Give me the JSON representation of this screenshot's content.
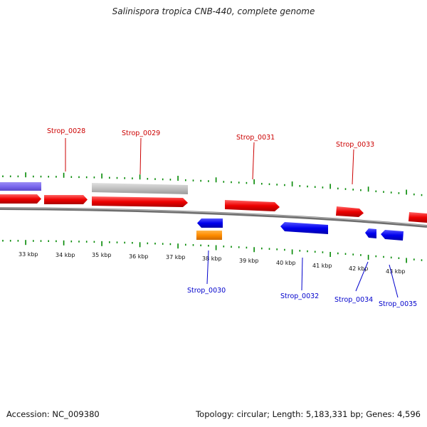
{
  "title": "Salinispora tropica CNB-440, complete genome",
  "footer": {
    "accession": "Accession: NC_009380",
    "summary": "Topology: circular; Length: 5,183,331 bp; Genes: 4,596"
  },
  "colors": {
    "forward_gene": "#ff0000",
    "reverse_gene": "#0000ee",
    "forward_label": "#cc0000",
    "reverse_label": "#0000cc",
    "tick": "#008800",
    "rna": "#ff8c00",
    "other_feature": "#c0c0c0",
    "repeat_region": "#7b68ee",
    "backbone": "#808080"
  },
  "scale_labels": [
    "33 kbp",
    "34 kbp",
    "35 kbp",
    "36 kbp",
    "37 kbp",
    "38 kbp",
    "39 kbp",
    "40 kbp",
    "41 kbp",
    "42 kbp",
    "43 kbp"
  ],
  "forward_gene_labels": [
    "Strop_0028",
    "Strop_0029",
    "Strop_0031",
    "Strop_0033"
  ],
  "reverse_gene_labels": [
    "Strop_0030",
    "Strop_0032",
    "Strop_0034",
    "Strop_0035"
  ]
}
